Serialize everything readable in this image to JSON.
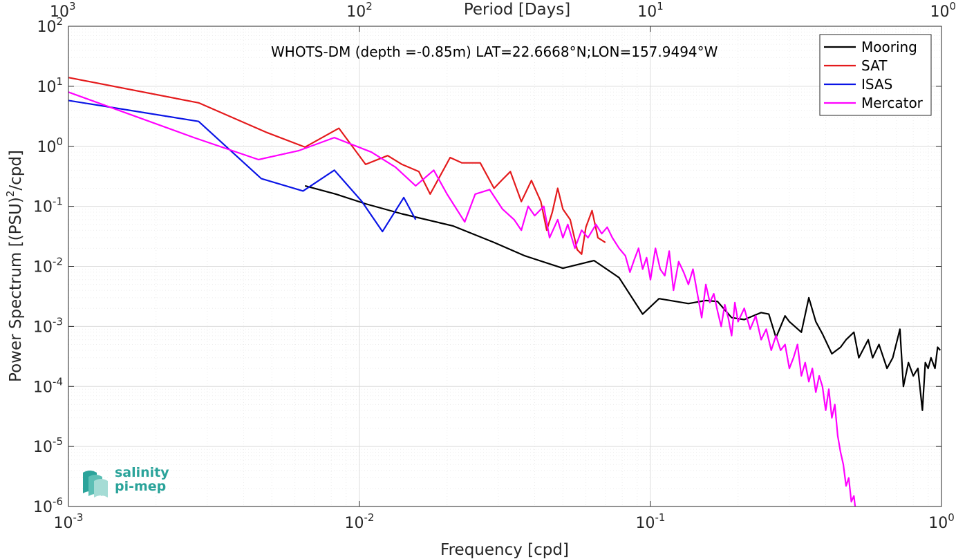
{
  "colors": {
    "mooring": "#000000",
    "sat": "#e41a1c",
    "isas": "#0a14e6",
    "mercator": "#ff00ff",
    "grid_major": "#dcdcdc",
    "grid_minor": "#ececec",
    "axis": "#262626",
    "logo": "#2aa39a"
  },
  "logo": {
    "line1": "salinity",
    "line2": "pi-mep",
    "icon": "salinity-wave-logo-icon"
  },
  "chart_data": {
    "type": "line",
    "x_scale": "log",
    "y_scale": "log",
    "xlabel": "Frequency [cpd]",
    "ylabel": "Power Spectrum [(PSU)",
    "ylabel_sup": "2",
    "ylabel_tail": "/cpd]",
    "top_axis_label": "Period [Days]",
    "annotation": "WHOTS-DM (depth =-0.85m) LAT=22.6668°N;LON=157.9494°W",
    "xlim": [
      0.001,
      1
    ],
    "ylim": [
      1e-06,
      100
    ],
    "grid": true,
    "minor_grid": true,
    "legend_position": "top-right",
    "x_ticks": [
      {
        "value": 0.001,
        "base": "10",
        "exp": "-3"
      },
      {
        "value": 0.01,
        "base": "10",
        "exp": "-2"
      },
      {
        "value": 0.1,
        "base": "10",
        "exp": "-1"
      },
      {
        "value": 1,
        "base": "10",
        "exp": "0"
      }
    ],
    "y_ticks": [
      {
        "value": 1e-06,
        "base": "10",
        "exp": "-6"
      },
      {
        "value": 1e-05,
        "base": "10",
        "exp": "-5"
      },
      {
        "value": 0.0001,
        "base": "10",
        "exp": "-4"
      },
      {
        "value": 0.001,
        "base": "10",
        "exp": "-3"
      },
      {
        "value": 0.01,
        "base": "10",
        "exp": "-2"
      },
      {
        "value": 0.1,
        "base": "10",
        "exp": "-1"
      },
      {
        "value": 1,
        "base": "10",
        "exp": "0"
      },
      {
        "value": 10,
        "base": "10",
        "exp": "1"
      },
      {
        "value": 100,
        "base": "10",
        "exp": "2"
      }
    ],
    "top_ticks": [
      {
        "freq": 0.001,
        "base": "10",
        "exp": "3"
      },
      {
        "freq": 0.01,
        "base": "10",
        "exp": "2"
      },
      {
        "freq": 0.1,
        "base": "10",
        "exp": "1"
      },
      {
        "freq": 1,
        "base": "10",
        "exp": "0"
      }
    ],
    "series": [
      {
        "name": "Mooring",
        "color_key": "mooring",
        "points": [
          [
            0.0065,
            0.22
          ],
          [
            0.0083,
            0.16
          ],
          [
            0.0105,
            0.11
          ],
          [
            0.014,
            0.075
          ],
          [
            0.021,
            0.047
          ],
          [
            0.029,
            0.025
          ],
          [
            0.037,
            0.015
          ],
          [
            0.05,
            0.0093
          ],
          [
            0.064,
            0.0125
          ],
          [
            0.078,
            0.0065
          ],
          [
            0.094,
            0.0016
          ],
          [
            0.107,
            0.0029
          ],
          [
            0.135,
            0.0024
          ],
          [
            0.155,
            0.0027
          ],
          [
            0.17,
            0.0026
          ],
          [
            0.19,
            0.0014
          ],
          [
            0.21,
            0.0013
          ],
          [
            0.24,
            0.0017
          ],
          [
            0.255,
            0.0016
          ],
          [
            0.27,
            0.00065
          ],
          [
            0.29,
            0.0015
          ],
          [
            0.3,
            0.0012
          ],
          [
            0.33,
            0.0008
          ],
          [
            0.35,
            0.003
          ],
          [
            0.37,
            0.0012
          ],
          [
            0.39,
            0.00075
          ],
          [
            0.42,
            0.00035
          ],
          [
            0.45,
            0.00045
          ],
          [
            0.47,
            0.0006
          ],
          [
            0.5,
            0.0008
          ],
          [
            0.52,
            0.0003
          ],
          [
            0.56,
            0.0006
          ],
          [
            0.58,
            0.0003
          ],
          [
            0.61,
            0.0005
          ],
          [
            0.65,
            0.0002
          ],
          [
            0.68,
            0.0003
          ],
          [
            0.72,
            0.0009
          ],
          [
            0.74,
            0.0001
          ],
          [
            0.77,
            0.00025
          ],
          [
            0.8,
            0.00015
          ],
          [
            0.83,
            0.0002
          ],
          [
            0.86,
            4e-05
          ],
          [
            0.88,
            0.00025
          ],
          [
            0.9,
            0.0002
          ],
          [
            0.92,
            0.0003
          ],
          [
            0.95,
            0.0002
          ],
          [
            0.97,
            0.00045
          ],
          [
            0.99,
            0.0004
          ]
        ]
      },
      {
        "name": "SAT",
        "color_key": "sat",
        "points": [
          [
            0.001,
            14
          ],
          [
            0.0028,
            5.3
          ],
          [
            0.0048,
            1.7
          ],
          [
            0.0065,
            0.97
          ],
          [
            0.0085,
            2.0
          ],
          [
            0.0105,
            0.5
          ],
          [
            0.0125,
            0.7
          ],
          [
            0.014,
            0.5
          ],
          [
            0.016,
            0.38
          ],
          [
            0.0175,
            0.16
          ],
          [
            0.0205,
            0.65
          ],
          [
            0.0225,
            0.53
          ],
          [
            0.026,
            0.53
          ],
          [
            0.029,
            0.2
          ],
          [
            0.031,
            0.28
          ],
          [
            0.033,
            0.38
          ],
          [
            0.036,
            0.12
          ],
          [
            0.039,
            0.27
          ],
          [
            0.042,
            0.12
          ],
          [
            0.044,
            0.04
          ],
          [
            0.046,
            0.08
          ],
          [
            0.048,
            0.2
          ],
          [
            0.05,
            0.09
          ],
          [
            0.053,
            0.06
          ],
          [
            0.056,
            0.019
          ],
          [
            0.058,
            0.016
          ],
          [
            0.06,
            0.045
          ],
          [
            0.063,
            0.085
          ],
          [
            0.066,
            0.03
          ],
          [
            0.07,
            0.025
          ]
        ]
      },
      {
        "name": "ISAS",
        "color_key": "isas",
        "points": [
          [
            0.001,
            5.8
          ],
          [
            0.0028,
            2.6
          ],
          [
            0.0046,
            0.29
          ],
          [
            0.0064,
            0.18
          ],
          [
            0.0082,
            0.4
          ],
          [
            0.0102,
            0.12
          ],
          [
            0.012,
            0.038
          ],
          [
            0.0142,
            0.14
          ],
          [
            0.0156,
            0.06
          ]
        ]
      },
      {
        "name": "Mercator",
        "color_key": "mercator",
        "points": [
          [
            0.001,
            8
          ],
          [
            0.0027,
            1.4
          ],
          [
            0.0045,
            0.6
          ],
          [
            0.0062,
            0.85
          ],
          [
            0.0082,
            1.4
          ],
          [
            0.011,
            0.8
          ],
          [
            0.0133,
            0.45
          ],
          [
            0.0156,
            0.22
          ],
          [
            0.018,
            0.4
          ],
          [
            0.02,
            0.16
          ],
          [
            0.023,
            0.055
          ],
          [
            0.025,
            0.16
          ],
          [
            0.028,
            0.19
          ],
          [
            0.031,
            0.09
          ],
          [
            0.034,
            0.06
          ],
          [
            0.036,
            0.04
          ],
          [
            0.038,
            0.1
          ],
          [
            0.04,
            0.07
          ],
          [
            0.043,
            0.1
          ],
          [
            0.045,
            0.03
          ],
          [
            0.048,
            0.06
          ],
          [
            0.05,
            0.03
          ],
          [
            0.052,
            0.05
          ],
          [
            0.055,
            0.02
          ],
          [
            0.058,
            0.04
          ],
          [
            0.061,
            0.03
          ],
          [
            0.065,
            0.05
          ],
          [
            0.068,
            0.035
          ],
          [
            0.071,
            0.045
          ],
          [
            0.074,
            0.03
          ],
          [
            0.078,
            0.02
          ],
          [
            0.082,
            0.015
          ],
          [
            0.085,
            0.008
          ],
          [
            0.088,
            0.013
          ],
          [
            0.091,
            0.02
          ],
          [
            0.094,
            0.009
          ],
          [
            0.097,
            0.014
          ],
          [
            0.1,
            0.006
          ],
          [
            0.104,
            0.02
          ],
          [
            0.108,
            0.009
          ],
          [
            0.112,
            0.007
          ],
          [
            0.116,
            0.018
          ],
          [
            0.12,
            0.004
          ],
          [
            0.125,
            0.012
          ],
          [
            0.13,
            0.008
          ],
          [
            0.135,
            0.005
          ],
          [
            0.14,
            0.009
          ],
          [
            0.145,
            0.0035
          ],
          [
            0.15,
            0.0014
          ],
          [
            0.155,
            0.005
          ],
          [
            0.16,
            0.0025
          ],
          [
            0.165,
            0.0035
          ],
          [
            0.17,
            0.0018
          ],
          [
            0.175,
            0.001
          ],
          [
            0.18,
            0.0023
          ],
          [
            0.185,
            0.0014
          ],
          [
            0.19,
            0.0007
          ],
          [
            0.195,
            0.0025
          ],
          [
            0.2,
            0.0012
          ],
          [
            0.21,
            0.002
          ],
          [
            0.22,
            0.0009
          ],
          [
            0.23,
            0.0015
          ],
          [
            0.24,
            0.0006
          ],
          [
            0.25,
            0.0009
          ],
          [
            0.26,
            0.0004
          ],
          [
            0.27,
            0.0007
          ],
          [
            0.28,
            0.0004
          ],
          [
            0.29,
            0.0005
          ],
          [
            0.3,
            0.0002
          ],
          [
            0.31,
            0.0003
          ],
          [
            0.32,
            0.0005
          ],
          [
            0.33,
            0.00015
          ],
          [
            0.34,
            0.00025
          ],
          [
            0.35,
            0.00012
          ],
          [
            0.36,
            0.0002
          ],
          [
            0.37,
            8e-05
          ],
          [
            0.38,
            0.00015
          ],
          [
            0.39,
            0.0001
          ],
          [
            0.4,
            4e-05
          ],
          [
            0.41,
            9e-05
          ],
          [
            0.42,
            3e-05
          ],
          [
            0.43,
            5e-05
          ],
          [
            0.44,
            1.5e-05
          ],
          [
            0.45,
            8e-06
          ],
          [
            0.46,
            5e-06
          ],
          [
            0.47,
            2.2e-06
          ],
          [
            0.48,
            3e-06
          ],
          [
            0.49,
            1.2e-06
          ],
          [
            0.5,
            1.5e-06
          ],
          [
            0.505,
            1e-06
          ]
        ]
      }
    ]
  }
}
